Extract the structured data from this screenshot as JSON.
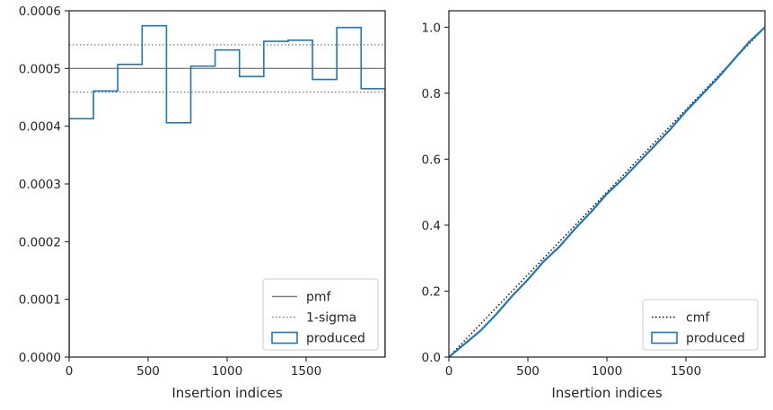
{
  "chart_data": [
    {
      "type": "step-histogram",
      "xlabel": "Insertion indices",
      "ylabel": "",
      "xlim": [
        0,
        2000
      ],
      "ylim": [
        0,
        0.0006
      ],
      "xticks": [
        0,
        500,
        1000,
        1500
      ],
      "xtick_labels": [
        "0",
        "500",
        "1000",
        "1500"
      ],
      "yticks": [
        0,
        0.0001,
        0.0002,
        0.0003,
        0.0004,
        0.0005,
        0.0006
      ],
      "ytick_labels": [
        "0.0000",
        "0.0001",
        "0.0002",
        "0.0003",
        "0.0004",
        "0.0005",
        "0.0006"
      ],
      "grid": false,
      "legend_position": "lower-right",
      "reference_lines": [
        {
          "name": "pmf",
          "y": 0.0005,
          "style": "solid",
          "color": "#808080"
        },
        {
          "name": "1-sigma",
          "y": 0.000541,
          "style": "dotted",
          "color": "#808080"
        },
        {
          "name": "1-sigma",
          "y": 0.000459,
          "style": "dotted",
          "color": "#808080"
        }
      ],
      "series": [
        {
          "name": "produced",
          "color": "#1f77b4",
          "bin_edges": [
            0,
            154,
            308,
            462,
            616,
            770,
            924,
            1078,
            1232,
            1386,
            1540,
            1694,
            1848,
            2000
          ],
          "values": [
            0.000413,
            0.000461,
            0.000507,
            0.000574,
            0.000406,
            0.000504,
            0.000532,
            0.000486,
            0.000547,
            0.000549,
            0.000481,
            0.000571,
            0.000465
          ]
        }
      ],
      "legend": [
        {
          "label": "pmf",
          "kind": "line-solid",
          "color": "#808080"
        },
        {
          "label": "1-sigma",
          "kind": "line-dotted",
          "color": "#808080"
        },
        {
          "label": "produced",
          "kind": "patch",
          "color": "#1f77b4"
        }
      ]
    },
    {
      "type": "line",
      "xlabel": "Insertion indices",
      "ylabel": "",
      "xlim": [
        0,
        2000
      ],
      "ylim": [
        0,
        1.05
      ],
      "xticks": [
        0,
        500,
        1000,
        1500
      ],
      "xtick_labels": [
        "0",
        "500",
        "1000",
        "1500"
      ],
      "yticks": [
        0,
        0.2,
        0.4,
        0.6,
        0.8,
        1.0
      ],
      "ytick_labels": [
        "0.0",
        "0.2",
        "0.4",
        "0.6",
        "0.8",
        "1.0"
      ],
      "grid": false,
      "legend_position": "lower-right",
      "series": [
        {
          "name": "cmf",
          "style": "dotted",
          "color": "#000000",
          "x": [
            0,
            2000
          ],
          "y": [
            0,
            1.0
          ]
        },
        {
          "name": "produced",
          "style": "solid",
          "color": "#1f77b4",
          "x": [
            0,
            100,
            200,
            300,
            400,
            500,
            600,
            700,
            800,
            900,
            1000,
            1100,
            1200,
            1300,
            1400,
            1500,
            1600,
            1700,
            1800,
            1900,
            2000
          ],
          "y": [
            0,
            0.04,
            0.08,
            0.13,
            0.185,
            0.235,
            0.29,
            0.335,
            0.39,
            0.44,
            0.495,
            0.54,
            0.59,
            0.64,
            0.69,
            0.745,
            0.795,
            0.845,
            0.9,
            0.955,
            1.0
          ]
        }
      ],
      "legend": [
        {
          "label": "cmf",
          "kind": "line-dotted",
          "color": "#000000"
        },
        {
          "label": "produced",
          "kind": "patch",
          "color": "#1f77b4"
        }
      ]
    }
  ]
}
